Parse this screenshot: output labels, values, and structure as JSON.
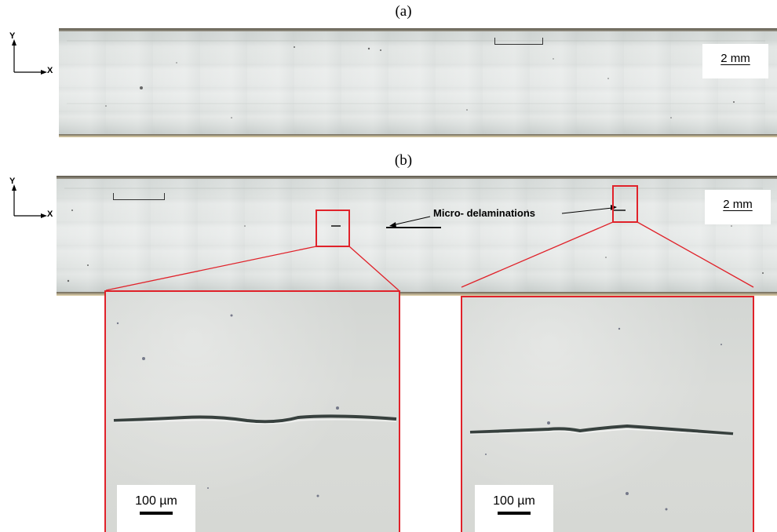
{
  "panels": {
    "a": {
      "label": "(a)",
      "scale_label": "2 mm"
    },
    "b": {
      "label": "(b)",
      "scale_label": "2 mm",
      "annotation": "Micro- delaminations"
    }
  },
  "axes": {
    "y": "Y",
    "x": "X"
  },
  "zoom_insets": [
    {
      "scale_label": "100 µm"
    },
    {
      "scale_label": "100 µm"
    }
  ],
  "colors": {
    "highlight": "#e0222a"
  }
}
